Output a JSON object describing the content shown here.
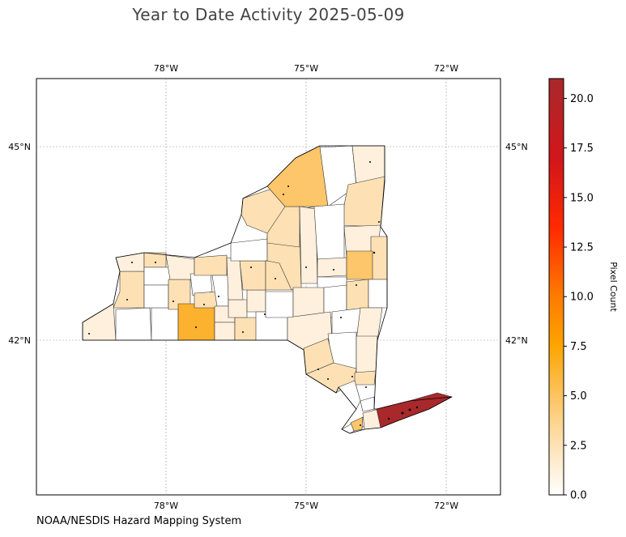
{
  "title": "Year to Date Activity 2025-05-09",
  "credit": "NOAA/NESDIS Hazard Mapping System",
  "map": {
    "lon_ticks": [
      "78°W",
      "75°W",
      "72°W"
    ],
    "lat_ticks": [
      "45°N",
      "42°N"
    ],
    "grid": true,
    "counties_fill": {
      "none": "#ffffff",
      "light": "#fef0dc",
      "pale": "#fde1b4",
      "med": "#fdc66a",
      "high": "#fcb12f",
      "max": "#a8282b"
    }
  },
  "colorbar": {
    "label": "Pixel Count",
    "min": 0.0,
    "max": 21.0,
    "ticks": [
      "0.0",
      "2.5",
      "5.0",
      "7.5",
      "10.0",
      "12.5",
      "15.0",
      "17.5",
      "20.0"
    ],
    "colors": [
      "#ffffff",
      "#fde2b5",
      "#fdc35e",
      "#fda400",
      "#fd7a00",
      "#ff2a00",
      "#d4161a",
      "#a8282b"
    ]
  }
}
